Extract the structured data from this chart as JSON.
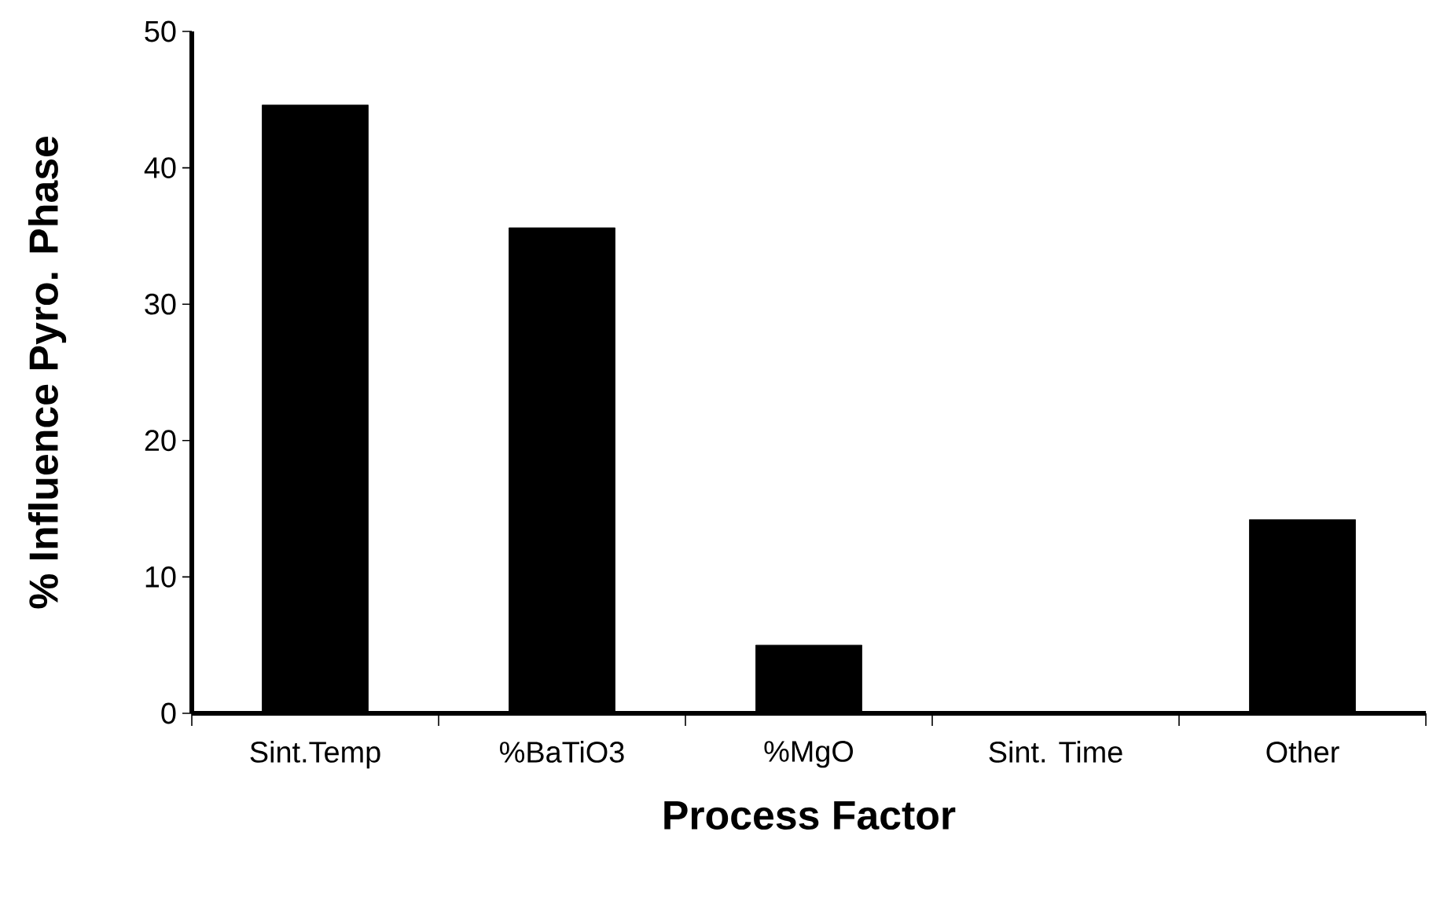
{
  "chart_data": {
    "type": "bar",
    "xlabel": "Process Factor",
    "ylabel": "% Influence Pyro. Phase",
    "categories": [
      "Sint.Temp",
      "%BaTiO3",
      "%MgO",
      "Sint. Time",
      "Other"
    ],
    "values": [
      44.6,
      35.6,
      5,
      0,
      14.2
    ],
    "color": "#000000",
    "ylim": [
      0,
      50
    ],
    "yticks": [
      0,
      10,
      20,
      30,
      40,
      50
    ]
  }
}
